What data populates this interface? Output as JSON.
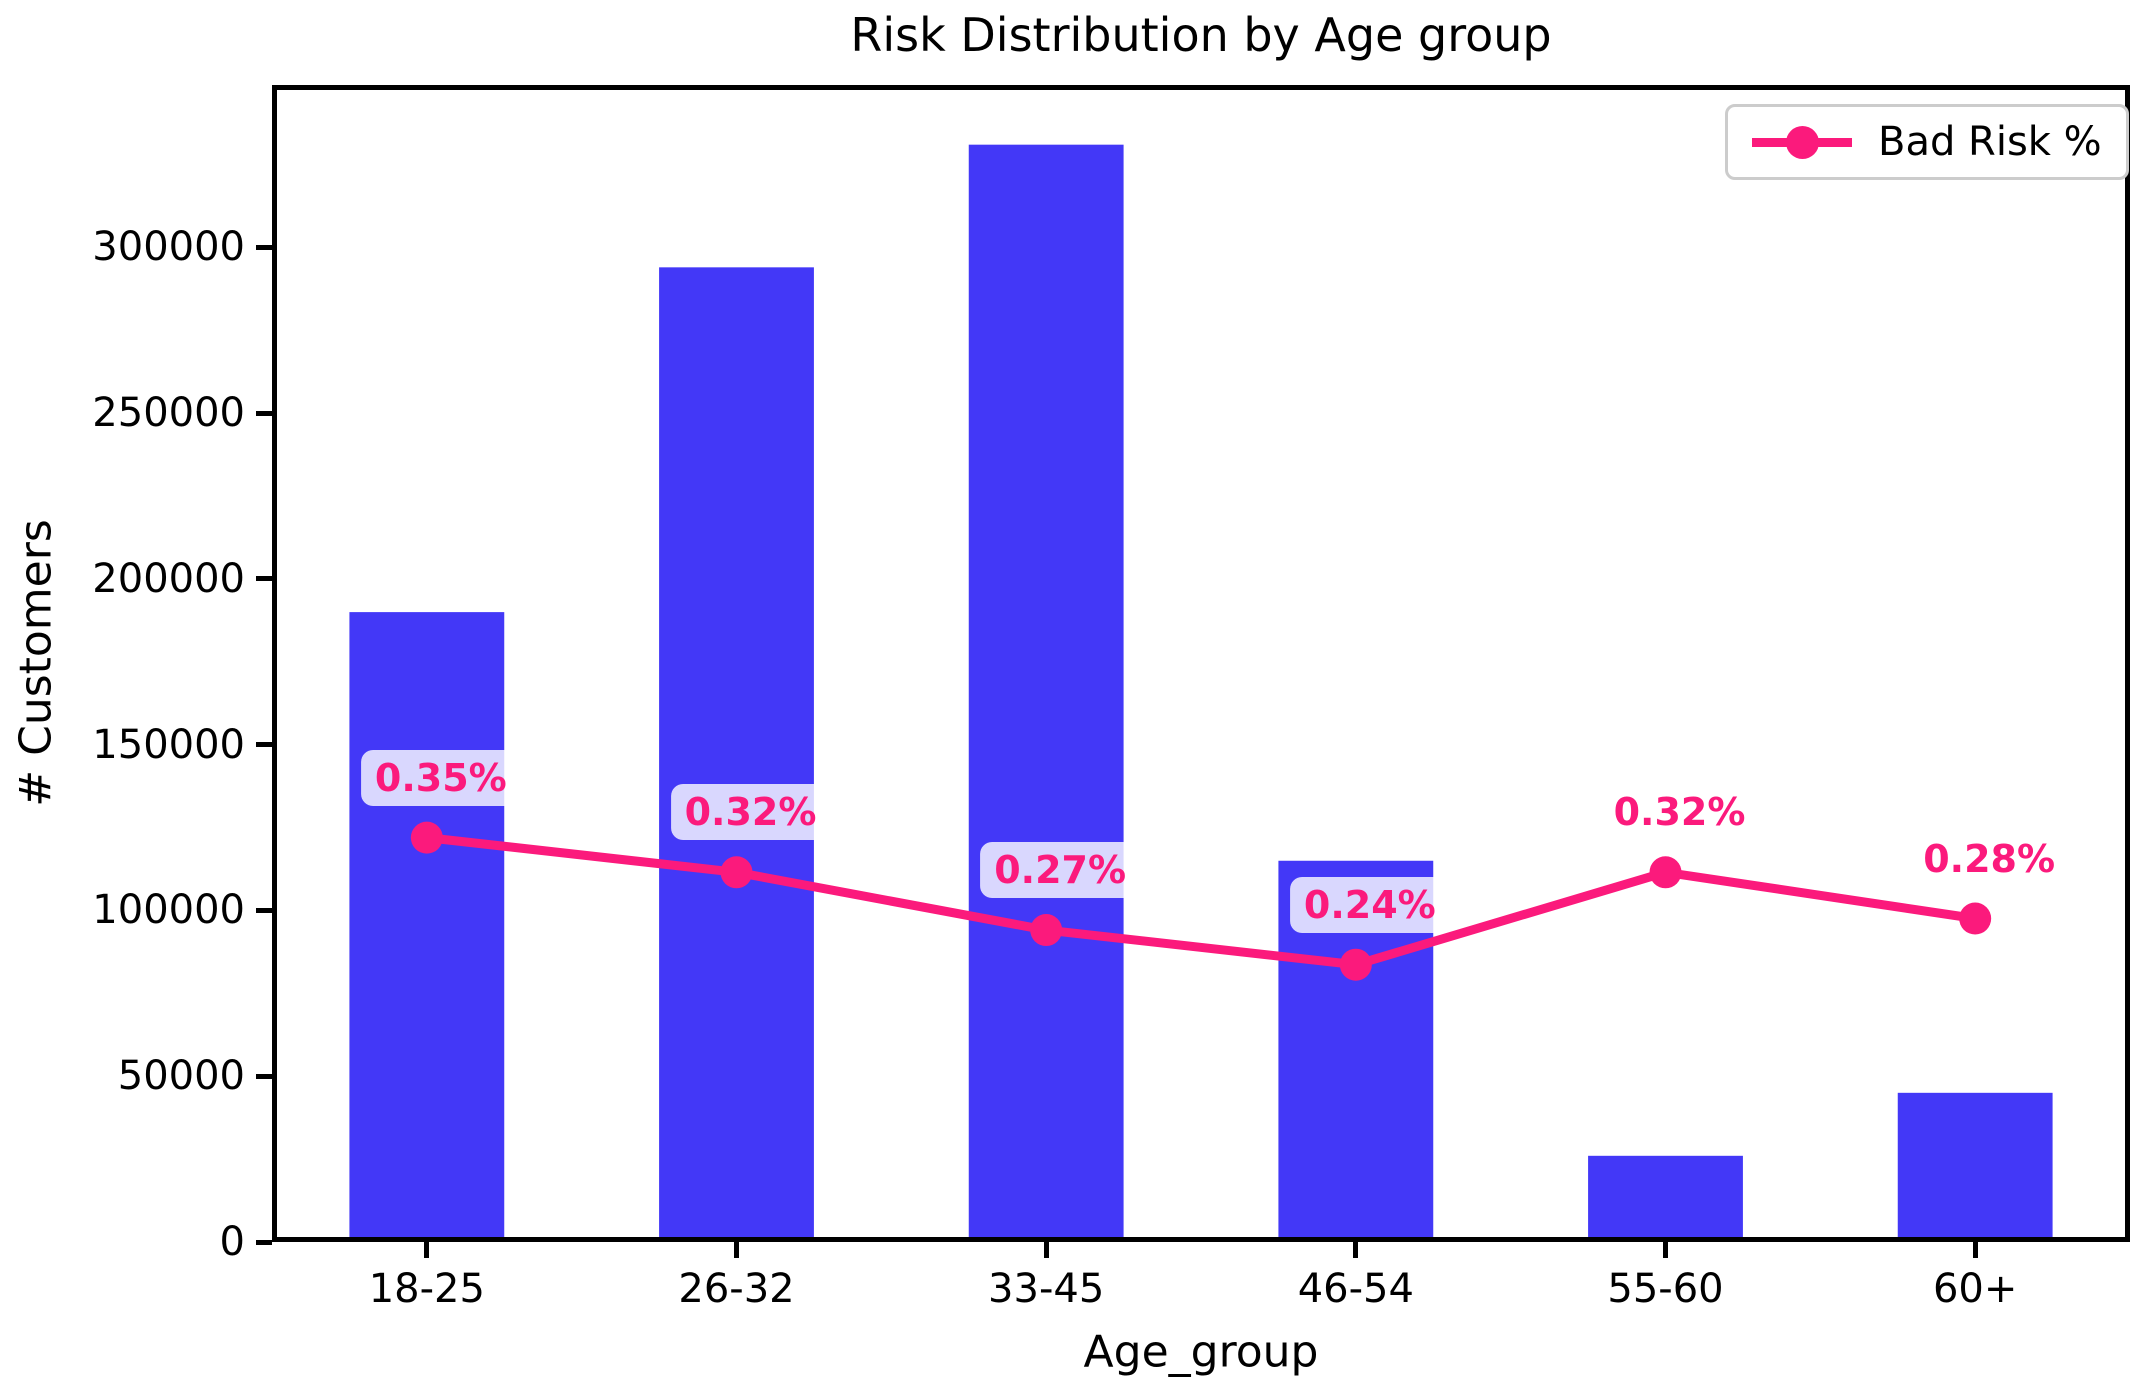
{
  "chart_data": {
    "type": "bar",
    "title": "Risk Distribution by Age group",
    "xlabel": "Age_group",
    "ylabel": "# Customers",
    "categories": [
      "18-25",
      "26-32",
      "33-45",
      "46-54",
      "55-60",
      "60+"
    ],
    "series": [
      {
        "name": "# Customers",
        "type": "bar",
        "values": [
          190000,
          294000,
          331000,
          115000,
          26000,
          45000
        ],
        "color": "#4338f7"
      },
      {
        "name": "Bad Risk %",
        "type": "line",
        "values": [
          0.35,
          0.32,
          0.27,
          0.24,
          0.32,
          0.28
        ],
        "labels": [
          "0.35%",
          "0.32%",
          "0.27%",
          "0.24%",
          "0.32%",
          "0.28%"
        ],
        "color": "#fb1a7c"
      }
    ],
    "y_ticks": [
      0,
      50000,
      100000,
      150000,
      200000,
      250000,
      300000
    ],
    "y_tick_labels": [
      "0",
      "50000",
      "100000",
      "150000",
      "200000",
      "250000",
      "300000"
    ],
    "ylim": [
      0,
      349000
    ],
    "line_scale_customers_per_pct": 348500,
    "grid": false,
    "legend": {
      "entries": [
        "Bad Risk %"
      ],
      "position": "upper right"
    }
  }
}
